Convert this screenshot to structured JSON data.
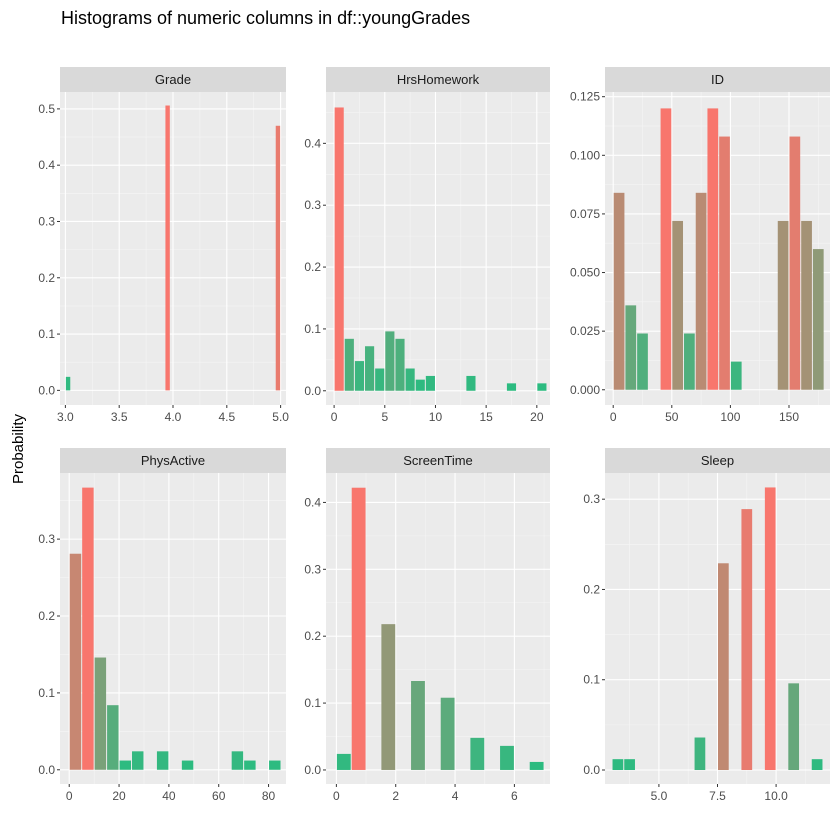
{
  "title": "Histograms of numeric columns in df::youngGrades",
  "ylabel": "Probability",
  "chart_data": [
    {
      "type": "bar",
      "facet": "Grade",
      "xlim": [
        2.95,
        5.05
      ],
      "ylim": [
        -0.026,
        0.53
      ],
      "xticks": [
        3.0,
        3.5,
        4.0,
        4.5,
        5.0
      ],
      "xtick_labels": [
        "3.0",
        "3.5",
        "4.0",
        "4.5",
        "5.0"
      ],
      "yticks": [
        0,
        0.1,
        0.2,
        0.3,
        0.4,
        0.5
      ],
      "ytick_labels": [
        "0.0",
        "0.1",
        "0.2",
        "0.3",
        "0.4",
        "0.5"
      ],
      "bars": [
        {
          "x0": 3.0,
          "x1": 3.05,
          "y": 0.024
        },
        {
          "x0": 3.925,
          "x1": 3.975,
          "y": 0.506
        },
        {
          "x0": 4.95,
          "x1": 5.0,
          "y": 0.47
        }
      ]
    },
    {
      "type": "bar",
      "facet": "HrsHomework",
      "xlim": [
        -0.8,
        21.3
      ],
      "ylim": [
        -0.023,
        0.483
      ],
      "xticks": [
        0,
        5,
        10,
        15,
        20
      ],
      "xtick_labels": [
        "0",
        "5",
        "10",
        "15",
        "20"
      ],
      "yticks": [
        0,
        0.1,
        0.2,
        0.3,
        0.4
      ],
      "ytick_labels": [
        "0.0",
        "0.1",
        "0.2",
        "0.3",
        "0.4"
      ],
      "bars": [
        {
          "x0": 0,
          "x1": 1,
          "y": 0.458
        },
        {
          "x0": 1,
          "x1": 2,
          "y": 0.084
        },
        {
          "x0": 2,
          "x1": 3,
          "y": 0.048
        },
        {
          "x0": 3,
          "x1": 4,
          "y": 0.072
        },
        {
          "x0": 4,
          "x1": 5,
          "y": 0.036
        },
        {
          "x0": 5,
          "x1": 6,
          "y": 0.096
        },
        {
          "x0": 6,
          "x1": 7,
          "y": 0.084
        },
        {
          "x0": 7,
          "x1": 8,
          "y": 0.036
        },
        {
          "x0": 8,
          "x1": 9,
          "y": 0.018
        },
        {
          "x0": 9,
          "x1": 10,
          "y": 0.024
        },
        {
          "x0": 13,
          "x1": 14,
          "y": 0.024
        },
        {
          "x0": 17,
          "x1": 18,
          "y": 0.012
        },
        {
          "x0": 20,
          "x1": 21,
          "y": 0.012
        }
      ]
    },
    {
      "type": "bar",
      "facet": "ID",
      "xlim": [
        -7,
        185
      ],
      "ylim": [
        -0.0065,
        0.127
      ],
      "xticks": [
        0,
        50,
        100,
        150
      ],
      "xtick_labels": [
        "0",
        "50",
        "100",
        "150"
      ],
      "yticks": [
        0,
        0.025,
        0.05,
        0.075,
        0.1,
        0.125
      ],
      "ytick_labels": [
        "0.000",
        "0.025",
        "0.050",
        "0.075",
        "0.100",
        "0.125"
      ],
      "bars": [
        {
          "x0": 0,
          "x1": 10,
          "y": 0.084
        },
        {
          "x0": 10,
          "x1": 20,
          "y": 0.036
        },
        {
          "x0": 20,
          "x1": 30,
          "y": 0.024
        },
        {
          "x0": 40,
          "x1": 50,
          "y": 0.12
        },
        {
          "x0": 50,
          "x1": 60,
          "y": 0.072
        },
        {
          "x0": 60,
          "x1": 70,
          "y": 0.024
        },
        {
          "x0": 70,
          "x1": 80,
          "y": 0.084
        },
        {
          "x0": 80,
          "x1": 90,
          "y": 0.12
        },
        {
          "x0": 90,
          "x1": 100,
          "y": 0.108
        },
        {
          "x0": 100,
          "x1": 110,
          "y": 0.012
        },
        {
          "x0": 140,
          "x1": 150,
          "y": 0.072
        },
        {
          "x0": 150,
          "x1": 160,
          "y": 0.108
        },
        {
          "x0": 160,
          "x1": 170,
          "y": 0.072
        },
        {
          "x0": 170,
          "x1": 180,
          "y": 0.06
        }
      ]
    },
    {
      "type": "bar",
      "facet": "PhysActive",
      "xlim": [
        -3.7,
        87.0
      ],
      "ylim": [
        -0.0185,
        0.386
      ],
      "xticks": [
        0,
        20,
        40,
        60,
        80
      ],
      "xtick_labels": [
        "0",
        "20",
        "40",
        "60",
        "80"
      ],
      "yticks": [
        0,
        0.1,
        0.2,
        0.3
      ],
      "ytick_labels": [
        "0.0",
        "0.1",
        "0.2",
        "0.3"
      ],
      "bars": [
        {
          "x0": 0,
          "x1": 5,
          "y": 0.281
        },
        {
          "x0": 5,
          "x1": 10,
          "y": 0.367
        },
        {
          "x0": 10,
          "x1": 15,
          "y": 0.146
        },
        {
          "x0": 15,
          "x1": 20,
          "y": 0.084
        },
        {
          "x0": 20,
          "x1": 25,
          "y": 0.012
        },
        {
          "x0": 25,
          "x1": 30,
          "y": 0.024
        },
        {
          "x0": 35,
          "x1": 40,
          "y": 0.024
        },
        {
          "x0": 45,
          "x1": 50,
          "y": 0.012
        },
        {
          "x0": 65,
          "x1": 70,
          "y": 0.024
        },
        {
          "x0": 70,
          "x1": 75,
          "y": 0.012
        },
        {
          "x0": 80,
          "x1": 85,
          "y": 0.012
        }
      ]
    },
    {
      "type": "bar",
      "facet": "ScreenTime",
      "xlim": [
        -0.35,
        7.2
      ],
      "ylim": [
        -0.021,
        0.444
      ],
      "xticks": [
        0,
        2,
        4,
        6
      ],
      "xtick_labels": [
        "0",
        "2",
        "4",
        "6"
      ],
      "yticks": [
        0,
        0.1,
        0.2,
        0.3,
        0.4
      ],
      "ytick_labels": [
        "0.0",
        "0.1",
        "0.2",
        "0.3",
        "0.4"
      ],
      "bars": [
        {
          "x0": 0.0,
          "x1": 0.5,
          "y": 0.024
        },
        {
          "x0": 0.5,
          "x1": 1.0,
          "y": 0.422
        },
        {
          "x0": 1.5,
          "x1": 2.0,
          "y": 0.218
        },
        {
          "x0": 2.5,
          "x1": 3.0,
          "y": 0.133
        },
        {
          "x0": 3.5,
          "x1": 4.0,
          "y": 0.108
        },
        {
          "x0": 4.5,
          "x1": 5.0,
          "y": 0.048
        },
        {
          "x0": 5.5,
          "x1": 6.0,
          "y": 0.036
        },
        {
          "x0": 6.5,
          "x1": 7.0,
          "y": 0.012
        }
      ]
    },
    {
      "type": "bar",
      "facet": "Sleep",
      "xlim": [
        2.7,
        12.3
      ],
      "ylim": [
        -0.0155,
        0.329
      ],
      "xticks": [
        5.0,
        7.5,
        10.0
      ],
      "xtick_labels": [
        "5.0",
        "7.5",
        "10.0"
      ],
      "yticks": [
        0,
        0.1,
        0.2,
        0.3
      ],
      "ytick_labels": [
        "0.0",
        "0.1",
        "0.2",
        "0.3"
      ],
      "bars": [
        {
          "x0": 3.0,
          "x1": 3.5,
          "y": 0.012
        },
        {
          "x0": 3.5,
          "x1": 4.0,
          "y": 0.012
        },
        {
          "x0": 6.5,
          "x1": 7.0,
          "y": 0.036
        },
        {
          "x0": 7.5,
          "x1": 8.0,
          "y": 0.229
        },
        {
          "x0": 8.5,
          "x1": 9.0,
          "y": 0.289
        },
        {
          "x0": 9.5,
          "x1": 10.0,
          "y": 0.313
        },
        {
          "x0": 10.5,
          "x1": 11.0,
          "y": 0.096
        },
        {
          "x0": 11.5,
          "x1": 12.0,
          "y": 0.012
        }
      ]
    }
  ],
  "colors": {
    "panel_bg": "#ebebeb",
    "strip_bg": "#d9d9d9",
    "grid_major": "#ffffff",
    "grid_minor": "#f5f5f5",
    "bar_high": "#f8766d",
    "bar_low": "#26bd81",
    "tick": "#4d4d4d"
  }
}
